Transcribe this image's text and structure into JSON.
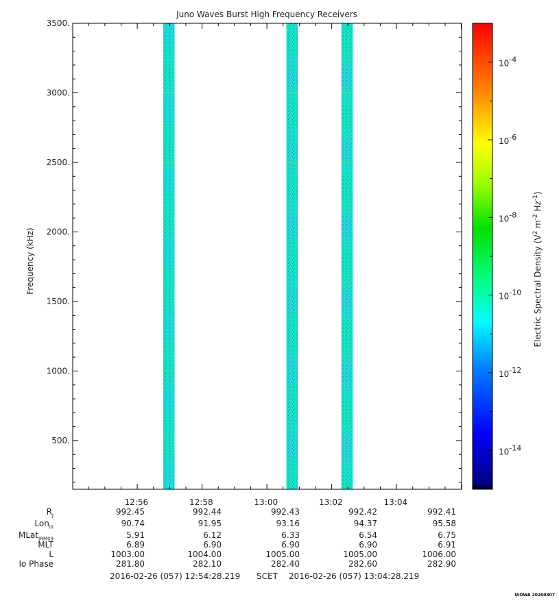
{
  "chart_data": {
    "type": "heatmap",
    "title": "Juno Waves Burst High Frequency Receivers",
    "ylabel": "Frequency (kHz)",
    "colorbar_label": "Electric Spectral Density (V² m⁻² Hz⁻¹)",
    "colorbar_label_parts": [
      "Electric Spectral Density (V",
      "2",
      " m",
      "-2",
      " Hz",
      "-1",
      ")"
    ],
    "colorbar_scale": "log",
    "colorbar_range": [
      1e-15,
      0.001
    ],
    "colorbar_ticks": [
      {
        "value": 0.0001,
        "base": "10",
        "exp": "-4"
      },
      {
        "value": 1e-06,
        "base": "10",
        "exp": "-6"
      },
      {
        "value": 1e-08,
        "base": "10",
        "exp": "-8"
      },
      {
        "value": 1e-10,
        "base": "10",
        "exp": "-10"
      },
      {
        "value": 1e-12,
        "base": "10",
        "exp": "-12"
      },
      {
        "value": 1e-14,
        "base": "10",
        "exp": "-14"
      }
    ],
    "ylim": [
      150,
      3500
    ],
    "yticks": [
      {
        "value": 500,
        "label": "500."
      },
      {
        "value": 1000,
        "label": "1000."
      },
      {
        "value": 1500,
        "label": "1500."
      },
      {
        "value": 2000,
        "label": "2000."
      },
      {
        "value": 2500,
        "label": "2500."
      },
      {
        "value": 3000,
        "label": "3000."
      },
      {
        "value": 3500,
        "label": "3500."
      }
    ],
    "xlim_minutes": [
      -119.53,
      600.47
    ],
    "xticks": [
      {
        "minutes": 0,
        "label": "12:56"
      },
      {
        "minutes": 120,
        "label": "12:58"
      },
      {
        "minutes": 240,
        "label": "13:00"
      },
      {
        "minutes": 360,
        "label": "13:02"
      },
      {
        "minutes": 480,
        "label": "13:04"
      }
    ],
    "bursts": [
      {
        "start": "12:56:48",
        "end": "12:57:09",
        "level": 3e-12
      },
      {
        "start": "13:00:36",
        "end": "13:00:57",
        "level": 3e-12
      },
      {
        "start": "13:02:18",
        "end": "13:02:39",
        "level": 3e-12
      }
    ],
    "grid": false
  },
  "ephemeris": {
    "labels": [
      {
        "main": "R",
        "sub": "J"
      },
      {
        "main": "Lon",
        "sub": "III"
      },
      {
        "main": "MLat",
        "sub": "JRM09"
      },
      {
        "main": "MLT",
        "sub": ""
      },
      {
        "main": "L",
        "sub": ""
      },
      {
        "main": "Io Phase",
        "sub": ""
      }
    ],
    "columns": [
      [
        "992.45",
        "90.74",
        "5.91",
        "6.89",
        "1003.00",
        "281.80"
      ],
      [
        "992.44",
        "91.95",
        "6.12",
        "6.90",
        "1004.00",
        "282.10"
      ],
      [
        "992.43",
        "93.16",
        "6.33",
        "6.90",
        "1005.00",
        "282.40"
      ],
      [
        "992.42",
        "94.37",
        "6.54",
        "6.90",
        "1005.00",
        "282.60"
      ],
      [
        "992.41",
        "95.58",
        "6.75",
        "6.91",
        "1006.00",
        "282.90"
      ]
    ]
  },
  "time_range": {
    "start": "2016-02-26 (057) 12:54:28.219",
    "label": "SCET",
    "end": "2016-02-26 (057) 13:04:28.219"
  },
  "footer": {
    "stamp": "UIOWA 20200307"
  },
  "colors": {
    "axis": "#000000",
    "background": "#ffffff"
  }
}
